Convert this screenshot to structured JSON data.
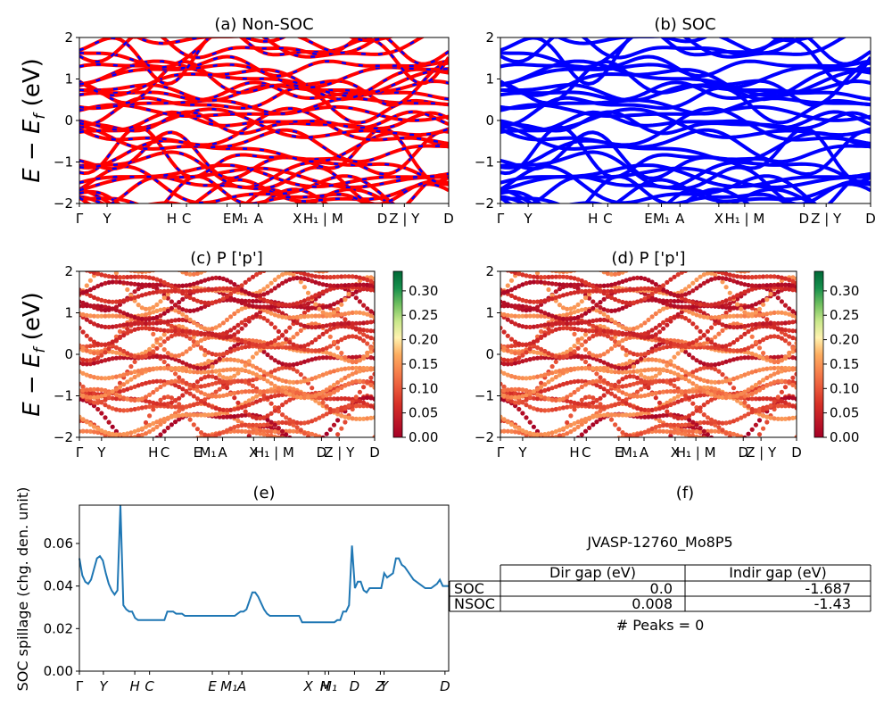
{
  "chart_data": [
    {
      "type": "line",
      "title": "(a) Non-SOC",
      "ylabel": "E - E_f (eV)",
      "ylim": [
        -2,
        2
      ],
      "yticks": [
        "−2",
        "−1",
        "0",
        "1",
        "2"
      ],
      "kpath_labels": [
        "Γ",
        "Y",
        "H",
        "C",
        "E",
        "M1",
        "A",
        "X",
        "H1 | M",
        "D",
        "Z | Y",
        "D"
      ],
      "series": [
        {
          "color": "#ff0000",
          "style": "solid"
        },
        {
          "color": "#0000ff",
          "style": "dashed"
        }
      ]
    },
    {
      "type": "line",
      "title": "(b) SOC",
      "ylim": [
        -2,
        2
      ],
      "yticks": [
        "−2",
        "−1",
        "0",
        "1",
        "2"
      ],
      "kpath_labels": [
        "Γ",
        "Y",
        "H",
        "C",
        "E",
        "M1",
        "A",
        "X",
        "H1 | M",
        "D",
        "Z | Y",
        "D"
      ],
      "series": [
        {
          "color": "#0000ff",
          "style": "solid"
        }
      ]
    },
    {
      "type": "scatter",
      "title": "(c)  P ['p']",
      "ylabel": "E - E_f (eV)",
      "ylim": [
        -2,
        2
      ],
      "yticks": [
        "−2",
        "−1",
        "0",
        "1",
        "2"
      ],
      "kpath_labels": [
        "Γ",
        "Y",
        "H",
        "C",
        "E",
        "M1",
        "A",
        "X",
        "H1 | M",
        "D",
        "Z | Y",
        "D"
      ],
      "colorbar": {
        "min": 0.0,
        "max": 0.34,
        "ticks": [
          "0.00",
          "0.05",
          "0.10",
          "0.15",
          "0.20",
          "0.25",
          "0.30"
        ],
        "colormap": "RdYlGn"
      }
    },
    {
      "type": "scatter",
      "title": "(d) P ['p']",
      "ylim": [
        -2,
        2
      ],
      "yticks": [
        "−2",
        "−1",
        "0",
        "1",
        "2"
      ],
      "kpath_labels": [
        "Γ",
        "Y",
        "H",
        "C",
        "E",
        "M1",
        "A",
        "X",
        "H1 | M",
        "D",
        "Z | Y",
        "D"
      ],
      "colorbar": {
        "min": 0.0,
        "max": 0.34,
        "ticks": [
          "0.00",
          "0.05",
          "0.10",
          "0.15",
          "0.20",
          "0.25",
          "0.30"
        ],
        "colormap": "RdYlGn"
      }
    },
    {
      "type": "line",
      "title": "(e)",
      "ylabel": "SOC spillage (chg. den. unit)",
      "ylim": [
        0,
        0.078
      ],
      "yticks": [
        "0.00",
        "0.02",
        "0.04",
        "0.06"
      ],
      "xticks": [
        "Γ",
        "Y",
        "H",
        "C",
        "E",
        "M1",
        "A",
        "X",
        "H",
        "M1",
        "D",
        "Z",
        "Y",
        "D"
      ],
      "series": [
        {
          "color": "#1f77b4",
          "values": [
            0.053,
            0.045,
            0.042,
            0.041,
            0.043,
            0.048,
            0.053,
            0.054,
            0.052,
            0.046,
            0.041,
            0.038,
            0.036,
            0.038,
            0.078,
            0.031,
            0.029,
            0.028,
            0.028,
            0.025,
            0.024,
            0.024,
            0.024,
            0.024,
            0.024,
            0.024,
            0.024,
            0.024,
            0.024,
            0.024,
            0.028,
            0.028,
            0.028,
            0.027,
            0.027,
            0.027,
            0.026,
            0.026,
            0.026,
            0.026,
            0.026,
            0.026,
            0.026,
            0.026,
            0.026,
            0.026,
            0.026,
            0.026,
            0.026,
            0.026,
            0.026,
            0.026,
            0.026,
            0.026,
            0.027,
            0.028,
            0.028,
            0.029,
            0.033,
            0.037,
            0.037,
            0.035,
            0.032,
            0.029,
            0.027,
            0.026,
            0.026,
            0.026,
            0.026,
            0.026,
            0.026,
            0.026,
            0.026,
            0.026,
            0.026,
            0.026,
            0.023,
            0.023,
            0.023,
            0.023,
            0.023,
            0.023,
            0.023,
            0.023,
            0.023,
            0.023,
            0.023,
            0.023,
            0.024,
            0.024,
            0.028,
            0.028,
            0.031,
            0.059,
            0.039,
            0.042,
            0.042,
            0.038,
            0.037,
            0.039,
            0.039,
            0.039,
            0.039,
            0.039,
            0.046,
            0.044,
            0.045,
            0.046,
            0.053,
            0.053,
            0.05,
            0.049,
            0.047,
            0.045,
            0.043,
            0.042,
            0.041,
            0.04,
            0.039,
            0.039,
            0.039,
            0.04,
            0.041,
            0.043,
            0.04,
            0.04,
            0.04
          ]
        }
      ]
    },
    {
      "type": "table",
      "title": "(f)",
      "subtitle": "JVASP-12760_Mo8P5",
      "columns": [
        "Dir gap (eV)",
        "Indir gap (eV)"
      ],
      "rows": [
        {
          "label": "SOC",
          "values": [
            "0.0",
            "-1.687"
          ]
        },
        {
          "label": "NSOC",
          "values": [
            "0.008",
            "-1.43"
          ]
        }
      ],
      "footer": "# Peaks = 0"
    }
  ]
}
